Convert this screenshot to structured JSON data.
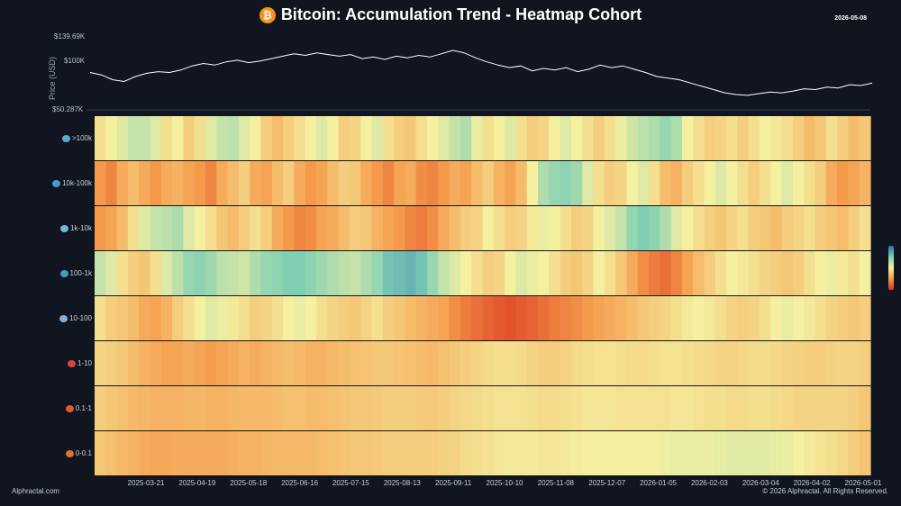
{
  "title": "Bitcoin: Accumulation Trend - Heatmap Cohort",
  "date_stamp": "2026-05-08",
  "footer": {
    "left": "Alphractal.com",
    "right": "© 2026 Alphractal. All Rights Reserved."
  },
  "chart_data": {
    "type": "heatmap",
    "title": "Bitcoin: Accumulation Trend - Heatmap Cohort",
    "price_panel": {
      "ylabel": "Price (USD)",
      "ticks": [
        "$139.69K",
        "$100K",
        "$50.287K"
      ],
      "tick_values": [
        139690,
        100000,
        50287
      ],
      "series": [
        95000,
        92000,
        86000,
        84000,
        90000,
        94000,
        96000,
        95000,
        98000,
        103000,
        106000,
        104000,
        108000,
        110000,
        107000,
        109000,
        112000,
        115000,
        118000,
        116000,
        119000,
        117000,
        115000,
        117000,
        112000,
        114000,
        111000,
        115000,
        113000,
        116000,
        114000,
        118000,
        122000,
        119000,
        113000,
        108000,
        104000,
        101000,
        103000,
        97000,
        100000,
        98000,
        101000,
        96000,
        99000,
        104000,
        101000,
        103000,
        99000,
        95000,
        90000,
        88000,
        86000,
        82000,
        78000,
        74000,
        70000,
        68000,
        67000,
        69000,
        71000,
        70000,
        72000,
        75000,
        74000,
        77000,
        76000,
        80000,
        79000,
        82000
      ]
    },
    "x_ticks": [
      "2025-03-21",
      "2025-04-19",
      "2025-05-18",
      "2025-06-16",
      "2025-07-15",
      "2025-08-13",
      "2025-09-11",
      "2025-10-10",
      "2025-11-08",
      "2025-12-07",
      "2026-01-05",
      "2026-02-03",
      "2026-03-04",
      "2026-04-02",
      "2026-05-01"
    ],
    "cohorts": [
      ">100k",
      "10k-100k",
      "1k-10k",
      "100-1k",
      "10-100",
      "1-10",
      "0.1-1",
      "0-0.1"
    ],
    "cohort_icons": [
      "whale-icon",
      "shark-icon",
      "dolphin-icon",
      "fish-icon",
      "octopus-icon",
      "crab-icon",
      "shrimp-icon",
      "shell-icon"
    ],
    "cohort_icon_colors": [
      "#5aa8d6",
      "#4a9ad0",
      "#6fb8e0",
      "#3aa0c8",
      "#8ab0d0",
      "#e04040",
      "#e05a30",
      "#e07030"
    ],
    "color_scale": [
      "#2a6fb0",
      "#7fcfb4",
      "#f4f0a0",
      "#f59a4a",
      "#d83020"
    ],
    "value_range": [
      0,
      1
    ],
    "rows": [
      [
        0.55,
        0.5,
        0.45,
        0.4,
        0.4,
        0.45,
        0.55,
        0.5,
        0.6,
        0.55,
        0.45,
        0.4,
        0.38,
        0.45,
        0.5,
        0.6,
        0.65,
        0.6,
        0.55,
        0.5,
        0.45,
        0.5,
        0.6,
        0.58,
        0.5,
        0.45,
        0.55,
        0.6,
        0.62,
        0.55,
        0.5,
        0.45,
        0.4,
        0.35,
        0.48,
        0.55,
        0.5,
        0.45,
        0.55,
        0.6,
        0.58,
        0.5,
        0.45,
        0.5,
        0.55,
        0.6,
        0.55,
        0.48,
        0.42,
        0.38,
        0.35,
        0.3,
        0.35,
        0.5,
        0.55,
        0.6,
        0.58,
        0.55,
        0.6,
        0.55,
        0.5,
        0.52,
        0.55,
        0.6,
        0.65,
        0.62,
        0.55,
        0.6,
        0.65,
        0.62
      ],
      [
        0.75,
        0.8,
        0.7,
        0.65,
        0.7,
        0.75,
        0.7,
        0.68,
        0.72,
        0.75,
        0.8,
        0.7,
        0.65,
        0.6,
        0.7,
        0.72,
        0.65,
        0.6,
        0.7,
        0.75,
        0.72,
        0.65,
        0.6,
        0.62,
        0.7,
        0.75,
        0.8,
        0.72,
        0.7,
        0.78,
        0.8,
        0.75,
        0.7,
        0.72,
        0.65,
        0.6,
        0.68,
        0.72,
        0.65,
        0.5,
        0.35,
        0.3,
        0.28,
        0.32,
        0.45,
        0.55,
        0.6,
        0.58,
        0.5,
        0.45,
        0.55,
        0.65,
        0.68,
        0.6,
        0.55,
        0.5,
        0.45,
        0.5,
        0.55,
        0.6,
        0.55,
        0.5,
        0.45,
        0.5,
        0.55,
        0.6,
        0.7,
        0.75,
        0.72,
        0.68
      ],
      [
        0.75,
        0.72,
        0.65,
        0.55,
        0.45,
        0.4,
        0.38,
        0.35,
        0.45,
        0.5,
        0.55,
        0.62,
        0.65,
        0.6,
        0.55,
        0.6,
        0.7,
        0.75,
        0.8,
        0.78,
        0.72,
        0.7,
        0.65,
        0.6,
        0.62,
        0.68,
        0.72,
        0.75,
        0.8,
        0.82,
        0.78,
        0.7,
        0.65,
        0.6,
        0.58,
        0.5,
        0.55,
        0.6,
        0.58,
        0.52,
        0.48,
        0.5,
        0.55,
        0.6,
        0.58,
        0.5,
        0.45,
        0.4,
        0.3,
        0.25,
        0.28,
        0.35,
        0.45,
        0.5,
        0.55,
        0.6,
        0.62,
        0.58,
        0.55,
        0.6,
        0.62,
        0.65,
        0.6,
        0.58,
        0.55,
        0.6,
        0.62,
        0.65,
        0.6,
        0.55
      ],
      [
        0.4,
        0.45,
        0.55,
        0.6,
        0.62,
        0.55,
        0.45,
        0.38,
        0.3,
        0.28,
        0.32,
        0.38,
        0.4,
        0.42,
        0.35,
        0.3,
        0.28,
        0.25,
        0.25,
        0.28,
        0.32,
        0.35,
        0.38,
        0.4,
        0.35,
        0.3,
        0.22,
        0.2,
        0.18,
        0.22,
        0.3,
        0.4,
        0.45,
        0.5,
        0.55,
        0.6,
        0.58,
        0.5,
        0.45,
        0.48,
        0.5,
        0.55,
        0.6,
        0.62,
        0.58,
        0.5,
        0.55,
        0.62,
        0.7,
        0.78,
        0.82,
        0.85,
        0.8,
        0.72,
        0.65,
        0.6,
        0.55,
        0.5,
        0.52,
        0.55,
        0.58,
        0.6,
        0.62,
        0.6,
        0.55,
        0.5,
        0.48,
        0.52,
        0.55,
        0.5
      ],
      [
        0.55,
        0.6,
        0.62,
        0.65,
        0.7,
        0.72,
        0.68,
        0.6,
        0.55,
        0.5,
        0.45,
        0.48,
        0.52,
        0.55,
        0.6,
        0.58,
        0.55,
        0.5,
        0.48,
        0.5,
        0.55,
        0.58,
        0.6,
        0.62,
        0.58,
        0.55,
        0.6,
        0.62,
        0.65,
        0.68,
        0.7,
        0.72,
        0.78,
        0.82,
        0.85,
        0.88,
        0.9,
        0.92,
        0.9,
        0.88,
        0.85,
        0.82,
        0.8,
        0.78,
        0.75,
        0.72,
        0.7,
        0.68,
        0.65,
        0.62,
        0.6,
        0.58,
        0.55,
        0.52,
        0.5,
        0.52,
        0.55,
        0.58,
        0.6,
        0.58,
        0.55,
        0.5,
        0.48,
        0.5,
        0.52,
        0.55,
        0.58,
        0.6,
        0.62,
        0.6
      ],
      [
        0.58,
        0.6,
        0.62,
        0.65,
        0.68,
        0.7,
        0.72,
        0.72,
        0.7,
        0.72,
        0.74,
        0.72,
        0.7,
        0.68,
        0.7,
        0.68,
        0.66,
        0.65,
        0.66,
        0.68,
        0.68,
        0.66,
        0.65,
        0.64,
        0.63,
        0.62,
        0.62,
        0.63,
        0.64,
        0.65,
        0.66,
        0.64,
        0.62,
        0.6,
        0.58,
        0.56,
        0.55,
        0.55,
        0.56,
        0.58,
        0.6,
        0.6,
        0.58,
        0.56,
        0.55,
        0.54,
        0.54,
        0.55,
        0.56,
        0.56,
        0.55,
        0.54,
        0.54,
        0.55,
        0.56,
        0.57,
        0.58,
        0.58,
        0.57,
        0.56,
        0.56,
        0.57,
        0.58,
        0.59,
        0.6,
        0.6,
        0.59,
        0.58,
        0.58,
        0.6
      ],
      [
        0.6,
        0.62,
        0.64,
        0.66,
        0.67,
        0.68,
        0.68,
        0.68,
        0.67,
        0.67,
        0.68,
        0.68,
        0.67,
        0.66,
        0.66,
        0.66,
        0.65,
        0.64,
        0.64,
        0.65,
        0.65,
        0.64,
        0.63,
        0.62,
        0.62,
        0.61,
        0.6,
        0.6,
        0.6,
        0.61,
        0.61,
        0.6,
        0.58,
        0.57,
        0.56,
        0.55,
        0.54,
        0.54,
        0.54,
        0.55,
        0.56,
        0.56,
        0.55,
        0.54,
        0.53,
        0.53,
        0.53,
        0.54,
        0.54,
        0.54,
        0.54,
        0.54,
        0.53,
        0.53,
        0.54,
        0.55,
        0.55,
        0.56,
        0.56,
        0.55,
        0.55,
        0.56,
        0.57,
        0.58,
        0.58,
        0.58,
        0.58,
        0.58,
        0.6,
        0.62
      ],
      [
        0.62,
        0.64,
        0.66,
        0.68,
        0.7,
        0.71,
        0.71,
        0.7,
        0.7,
        0.7,
        0.7,
        0.7,
        0.69,
        0.68,
        0.68,
        0.67,
        0.66,
        0.66,
        0.66,
        0.66,
        0.65,
        0.64,
        0.63,
        0.62,
        0.62,
        0.61,
        0.6,
        0.6,
        0.6,
        0.6,
        0.6,
        0.59,
        0.58,
        0.56,
        0.55,
        0.54,
        0.53,
        0.52,
        0.52,
        0.52,
        0.53,
        0.53,
        0.52,
        0.51,
        0.5,
        0.5,
        0.5,
        0.5,
        0.5,
        0.5,
        0.5,
        0.49,
        0.48,
        0.48,
        0.48,
        0.48,
        0.47,
        0.46,
        0.46,
        0.46,
        0.46,
        0.47,
        0.48,
        0.5,
        0.52,
        0.54,
        0.55,
        0.57,
        0.6,
        0.63
      ]
    ]
  }
}
